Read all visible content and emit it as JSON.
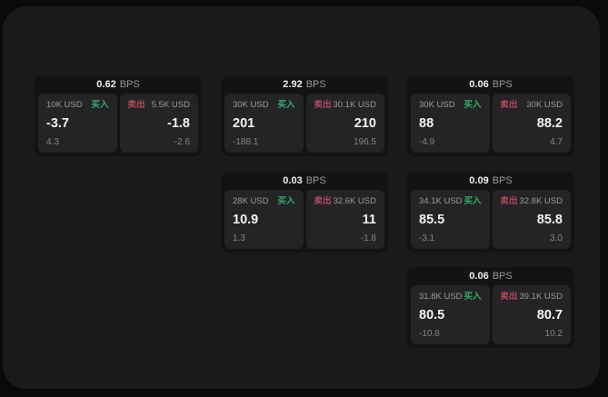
{
  "colors": {
    "page_background": "#0a0a0a",
    "window_background": "#1a1a1b",
    "card_background": "#131314",
    "panel_background": "#242426",
    "text_primary": "#f4f4f4",
    "text_secondary": "#9b9b9f",
    "buy_green": "#2fae68",
    "sell_red": "#b4485c"
  },
  "cards": [
    {
      "bps_value": "0.62",
      "bps_unit": "BPS",
      "buy": {
        "amount": "10K USD",
        "side_label": "买入",
        "value": "-3.7",
        "delta": "4.3"
      },
      "sell": {
        "amount": "5.5K USD",
        "side_label": "卖出",
        "value": "-1.8",
        "delta": "-2.6"
      }
    },
    {
      "bps_value": "2.92",
      "bps_unit": "BPS",
      "buy": {
        "amount": "30K USD",
        "side_label": "买入",
        "value": "201",
        "delta": "-188.1"
      },
      "sell": {
        "amount": "30.1K USD",
        "side_label": "卖出",
        "value": "210",
        "delta": "196.5"
      }
    },
    {
      "bps_value": "0.06",
      "bps_unit": "BPS",
      "buy": {
        "amount": "30K USD",
        "side_label": "买入",
        "value": "88",
        "delta": "-4.9"
      },
      "sell": {
        "amount": "30K USD",
        "side_label": "卖出",
        "value": "88.2",
        "delta": "4.7"
      }
    },
    {
      "bps_value": "0.03",
      "bps_unit": "BPS",
      "buy": {
        "amount": "28K USD",
        "side_label": "买入",
        "value": "10.9",
        "delta": "1.3"
      },
      "sell": {
        "amount": "32.6K USD",
        "side_label": "卖出",
        "value": "11",
        "delta": "-1.8"
      }
    },
    {
      "bps_value": "0.09",
      "bps_unit": "BPS",
      "buy": {
        "amount": "34.1K USD",
        "side_label": "买入",
        "value": "85.5",
        "delta": "-3.1"
      },
      "sell": {
        "amount": "32.8K USD",
        "side_label": "卖出",
        "value": "85.8",
        "delta": "3.0"
      }
    },
    {
      "bps_value": "0.06",
      "bps_unit": "BPS",
      "buy": {
        "amount": "31.8K USD",
        "side_label": "买入",
        "value": "80.5",
        "delta": "-10.8"
      },
      "sell": {
        "amount": "39.1K USD",
        "side_label": "卖出",
        "value": "80.7",
        "delta": "10.2"
      }
    }
  ]
}
